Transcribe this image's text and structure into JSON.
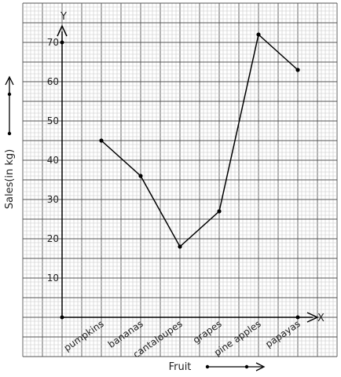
{
  "chart_data": {
    "type": "line",
    "xlabel": "Fruit",
    "ylabel": "Sales(in kg)",
    "x_axis_letter": "X",
    "y_axis_letter": "Y",
    "categories": [
      "pumpkins",
      "bananas",
      "cantaloupes",
      "grapes",
      "pine apples",
      "papayas"
    ],
    "values": [
      45,
      36,
      18,
      27,
      72,
      63
    ],
    "yticks": [
      10,
      20,
      30,
      40,
      50,
      60,
      70
    ],
    "ylim": [
      -10,
      80
    ],
    "grid": true,
    "line_color": "#000000",
    "grid_major_color": "#555555",
    "grid_minor_color": "#c8c8c8"
  }
}
